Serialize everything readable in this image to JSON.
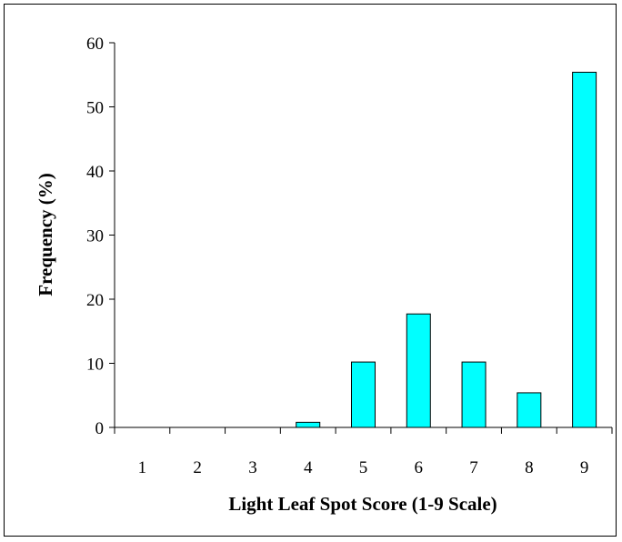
{
  "chart_data": {
    "type": "bar",
    "title": "",
    "xlabel": "Light Leaf Spot Score (1-9 Scale)",
    "ylabel": "Frequency (%)",
    "categories": [
      "1",
      "2",
      "3",
      "4",
      "5",
      "6",
      "7",
      "8",
      "9"
    ],
    "values": [
      0,
      0,
      0,
      0.8,
      10.2,
      17.7,
      10.2,
      5.4,
      55.4
    ],
    "ylim": [
      0,
      60
    ],
    "yticks": [
      "0",
      "10",
      "20",
      "30",
      "40",
      "50",
      "60"
    ],
    "grid": false,
    "legend": "none",
    "bar_color": "#00ffff"
  }
}
